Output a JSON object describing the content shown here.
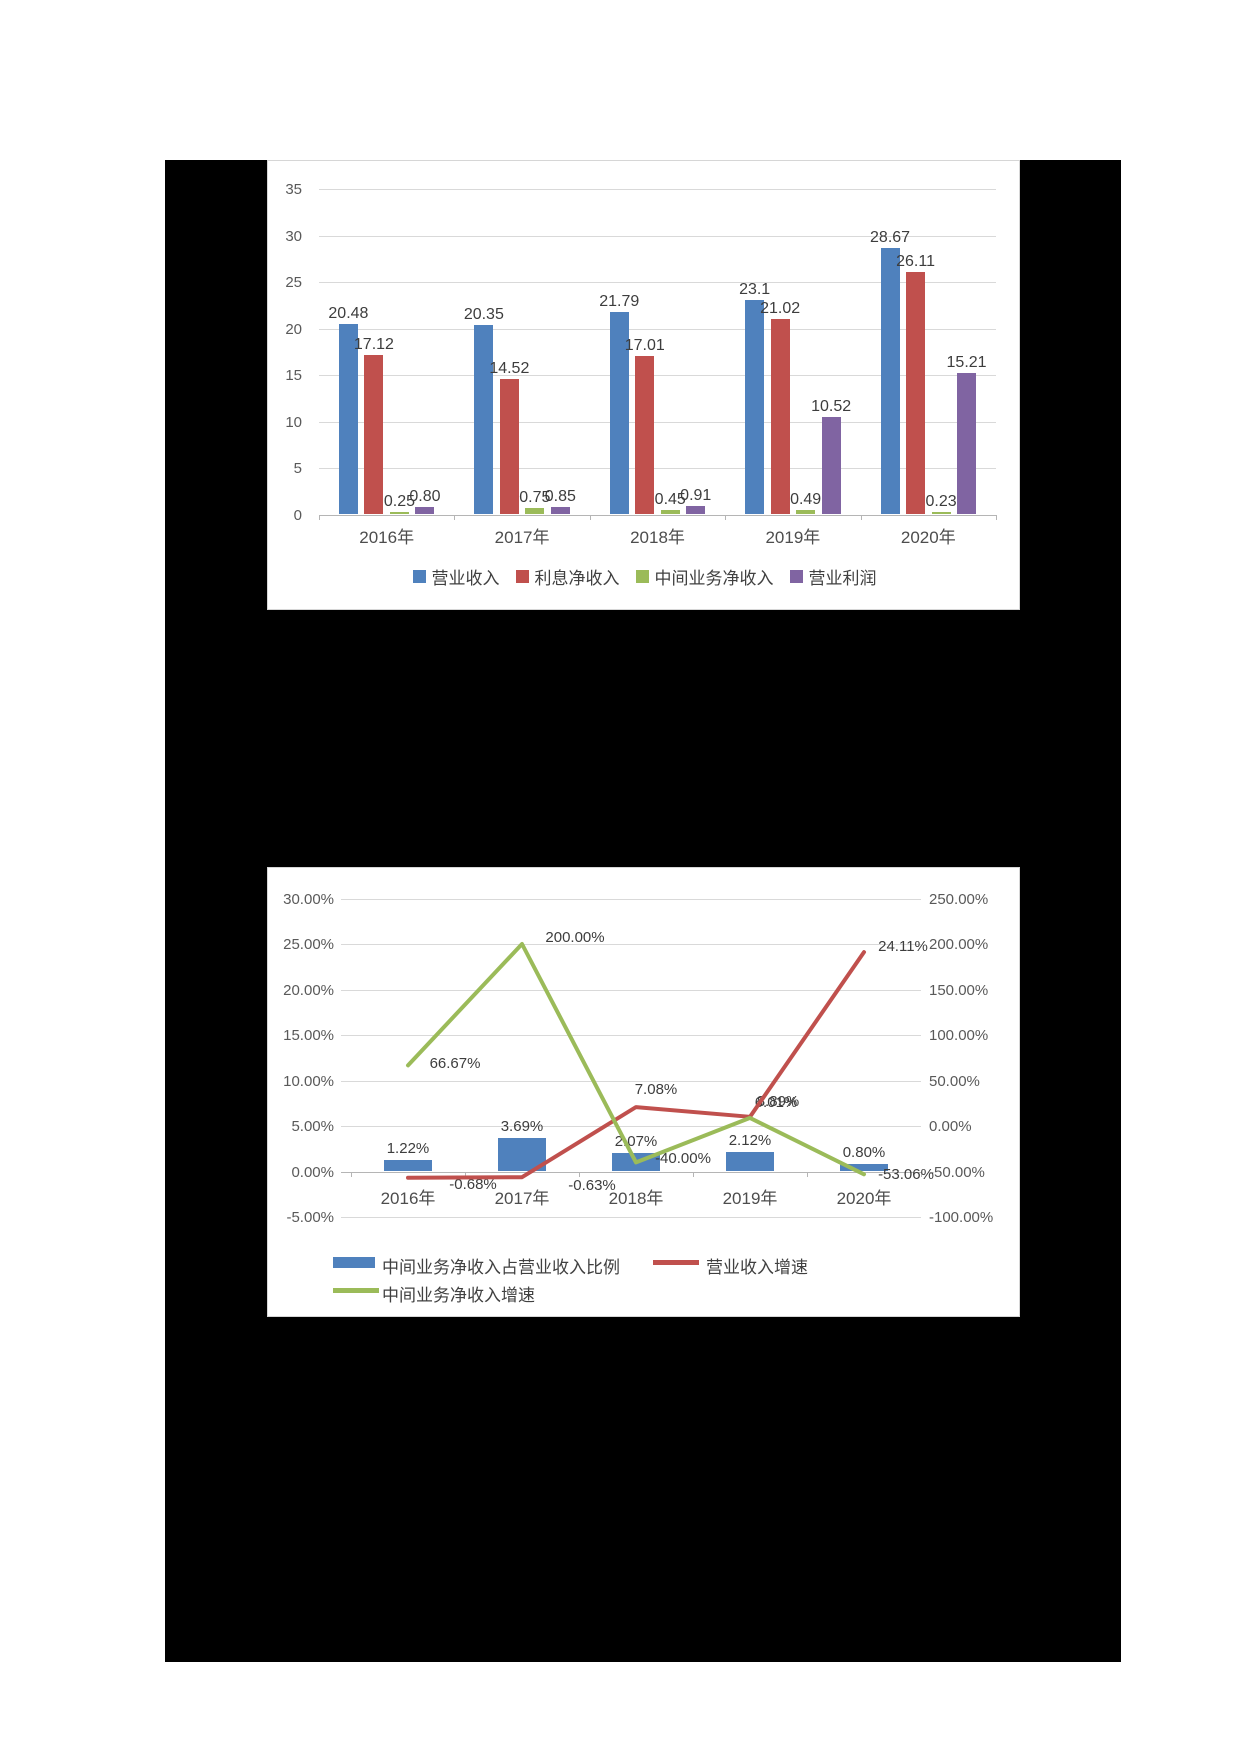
{
  "page": {
    "background_color": "#ffffff",
    "black_region_color": "#000000"
  },
  "chart_data": [
    {
      "type": "bar",
      "title": "",
      "xlabel": "",
      "ylabel": "",
      "categories": [
        "2016年",
        "2017年",
        "2018年",
        "2019年",
        "2020年"
      ],
      "y_ticks": [
        "35",
        "30",
        "25",
        "20",
        "15",
        "10",
        "5",
        "0"
      ],
      "ylim": [
        0,
        35
      ],
      "grid": "horizontal",
      "legend_position": "bottom",
      "series": [
        {
          "name": "营业收入",
          "color": "#4F81BD",
          "values": [
            20.48,
            20.35,
            21.79,
            23.1,
            28.67
          ],
          "labels": [
            "20.48",
            "20.35",
            "21.79",
            "23.1",
            "28.67"
          ]
        },
        {
          "name": "利息净收入",
          "color": "#C0504D",
          "values": [
            17.12,
            14.52,
            17.01,
            21.02,
            26.11
          ],
          "labels": [
            "17.12",
            "14.52",
            "17.01",
            "21.02",
            "26.11"
          ]
        },
        {
          "name": "中间业务净收入",
          "color": "#9BBB59",
          "values": [
            0.25,
            0.75,
            0.45,
            0.49,
            0.23
          ],
          "labels": [
            "0.25",
            "0.75",
            "0.45",
            "0.49",
            "0.23"
          ]
        },
        {
          "name": "营业利润",
          "color": "#8064A2",
          "values": [
            0.8,
            0.85,
            0.91,
            10.52,
            15.21
          ],
          "labels": [
            "0.80",
            "0.85",
            "0.91",
            "10.52",
            "15.21"
          ]
        }
      ]
    },
    {
      "type": "combo-bar-line",
      "title": "",
      "xlabel": "",
      "ylabel_left": "",
      "ylabel_right": "",
      "categories": [
        "2016年",
        "2017年",
        "2018年",
        "2019年",
        "2020年"
      ],
      "left_ticks": [
        "30.00%",
        "25.00%",
        "20.00%",
        "15.00%",
        "10.00%",
        "5.00%",
        "0.00%",
        "-5.00%"
      ],
      "left_tick_values": [
        30,
        25,
        20,
        15,
        10,
        5,
        0,
        -5
      ],
      "right_ticks": [
        "250.00%",
        "200.00%",
        "150.00%",
        "100.00%",
        "50.00%",
        "0.00%",
        "-50.00%",
        "-100.00%"
      ],
      "right_tick_values": [
        250,
        200,
        150,
        100,
        50,
        0,
        -50,
        -100
      ],
      "ylim_left": [
        -5,
        30
      ],
      "ylim_right": [
        -100,
        250
      ],
      "grid": "horizontal",
      "legend_position": "bottom",
      "bar_series": {
        "name": "中间业务净收入占营业收入比例",
        "color": "#4F81BD",
        "axis": "left",
        "values": [
          1.22,
          3.69,
          2.07,
          2.12,
          0.8
        ],
        "labels": [
          "1.22%",
          "3.69%",
          "2.07%",
          "2.12%",
          "0.80%"
        ]
      },
      "line_series": [
        {
          "name": "营业收入增速",
          "color": "#C0504D",
          "axis": "left",
          "values": [
            -0.68,
            -0.63,
            7.08,
            6.01,
            24.11
          ],
          "labels": [
            "-0.68%",
            "-0.63%",
            "7.08%",
            "6.01%",
            "24.11%"
          ]
        },
        {
          "name": "中间业务净收入增速",
          "color": "#9BBB59",
          "axis": "right",
          "values": [
            66.67,
            200.0,
            -40.0,
            8.89,
            -53.06
          ],
          "labels": [
            "66.67%",
            "200.00%",
            "-40.00%",
            "8.89%",
            "-53.06%"
          ]
        }
      ]
    }
  ]
}
